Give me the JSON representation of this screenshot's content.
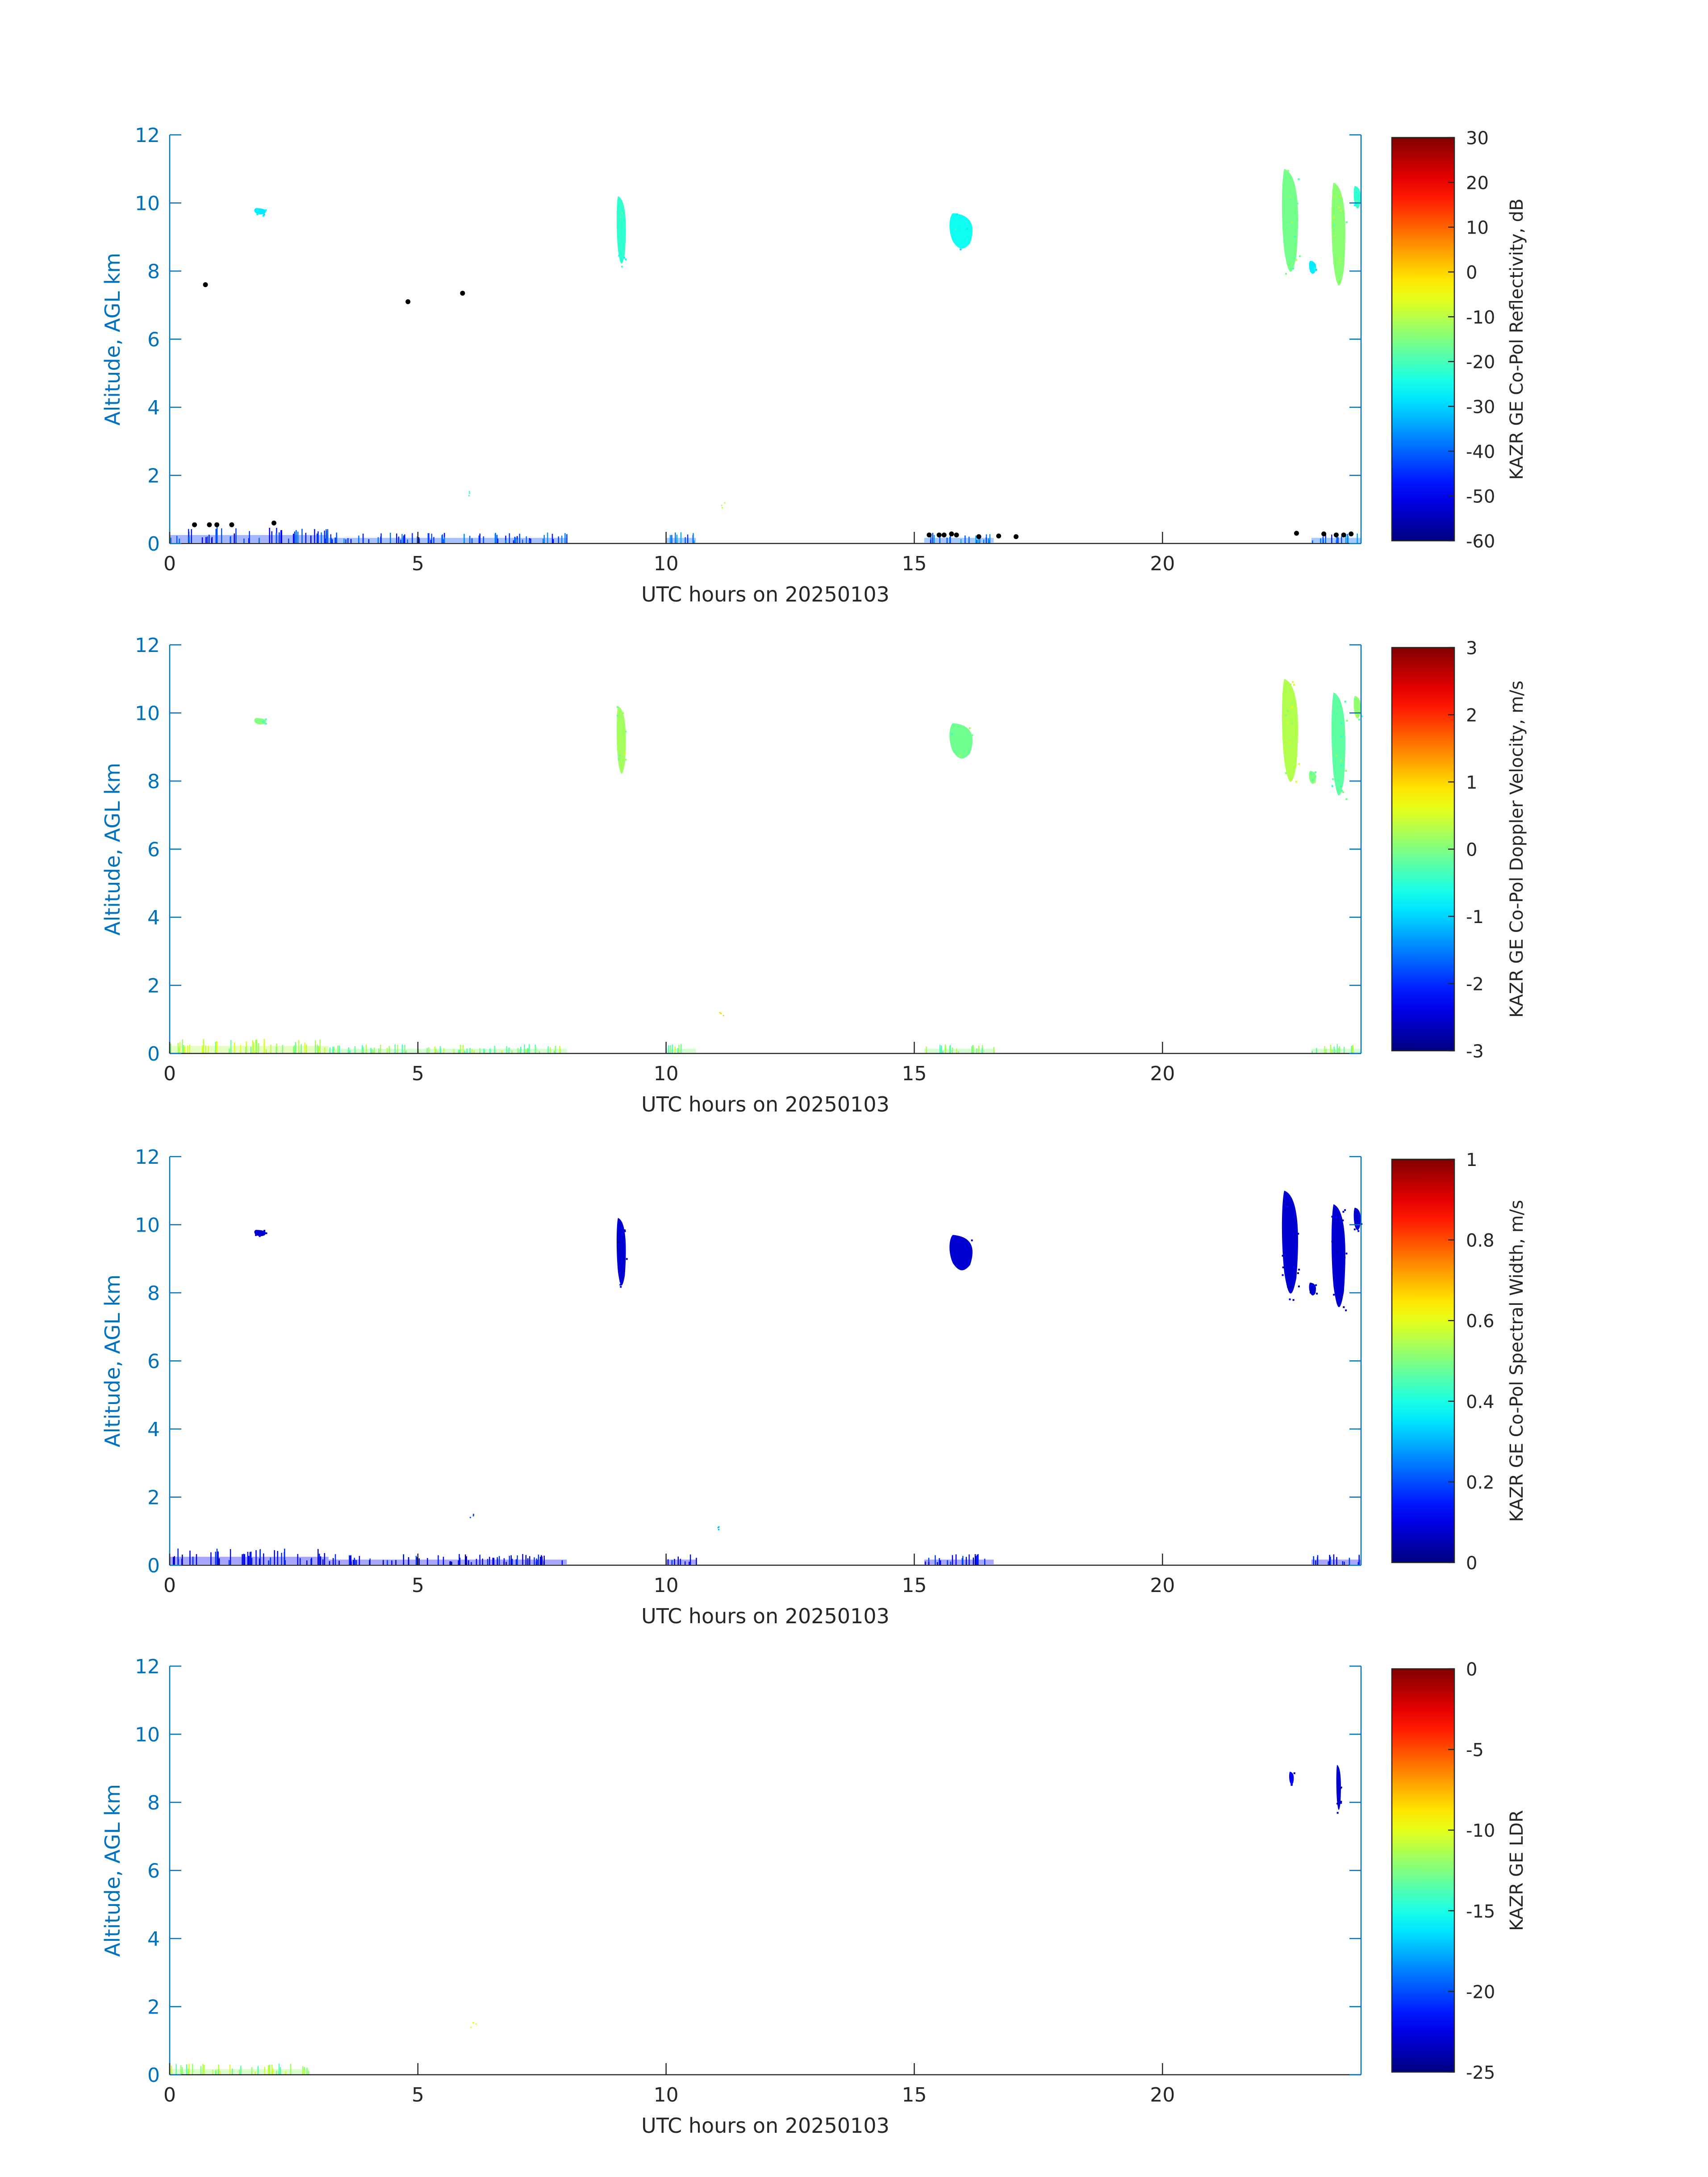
{
  "figure": {
    "accent_color": "#0072bd",
    "text_color": "#262626"
  },
  "chart_data": [
    {
      "type": "heatmap",
      "xlabel": "UTC hours on 20250103",
      "ylabel": "Altitude, AGL km",
      "xlim": [
        0,
        24
      ],
      "ylim": [
        0,
        12
      ],
      "xticks": [
        0,
        5,
        10,
        15,
        20
      ],
      "yticks": [
        0,
        2,
        4,
        6,
        8,
        10,
        12
      ],
      "colorbar": {
        "label": "KAZR GE Co-Pol Reflectivity, dB",
        "lim": [
          -60,
          30
        ],
        "ticks": [
          -60,
          -50,
          -40,
          -30,
          -20,
          -10,
          0,
          10,
          20,
          30
        ],
        "colormap": "jet"
      },
      "features": [
        {
          "kind": "cloud",
          "t_start": 1.7,
          "t_end": 1.95,
          "alt_bottom": 9.65,
          "alt_top": 9.85,
          "value": -28
        },
        {
          "kind": "cloud",
          "t_start": 9.0,
          "t_end": 9.2,
          "alt_bottom": 8.1,
          "alt_top": 10.2,
          "value": -22
        },
        {
          "kind": "cloud",
          "t_start": 15.7,
          "t_end": 16.2,
          "alt_bottom": 8.6,
          "alt_top": 9.7,
          "value": -25
        },
        {
          "kind": "cloud",
          "t_start": 22.4,
          "t_end": 22.75,
          "alt_bottom": 7.8,
          "alt_top": 11.0,
          "value": -16
        },
        {
          "kind": "cloud",
          "t_start": 22.95,
          "t_end": 23.1,
          "alt_bottom": 7.9,
          "alt_top": 8.3,
          "value": -28
        },
        {
          "kind": "cloud",
          "t_start": 23.4,
          "t_end": 23.7,
          "alt_bottom": 7.4,
          "alt_top": 10.6,
          "value": -14
        },
        {
          "kind": "cloud",
          "t_start": 23.85,
          "t_end": 24.0,
          "alt_bottom": 9.8,
          "alt_top": 10.5,
          "value": -22
        },
        {
          "kind": "clutter",
          "t_start": 0.0,
          "t_end": 3.2,
          "alt_top": 0.45,
          "value": -45
        },
        {
          "kind": "clutter",
          "t_start": 3.2,
          "t_end": 8.0,
          "alt_top": 0.3,
          "value": -42
        },
        {
          "kind": "clutter",
          "t_start": 10.0,
          "t_end": 10.6,
          "alt_top": 0.3,
          "value": -40
        },
        {
          "kind": "clutter",
          "t_start": 15.2,
          "t_end": 16.6,
          "alt_top": 0.3,
          "value": -40
        },
        {
          "kind": "clutter",
          "t_start": 23.0,
          "t_end": 24.0,
          "alt_top": 0.3,
          "value": -40
        },
        {
          "kind": "specks",
          "t": 11.1,
          "alt": 1.15,
          "value": -10
        },
        {
          "kind": "specks",
          "t": 6.1,
          "alt": 1.5,
          "value": -20
        }
      ],
      "dots": [
        {
          "t": 0.72,
          "alt": 7.6
        },
        {
          "t": 4.8,
          "alt": 7.1
        },
        {
          "t": 5.9,
          "alt": 7.35
        },
        {
          "t": 0.5,
          "alt": 0.55
        },
        {
          "t": 0.8,
          "alt": 0.55
        },
        {
          "t": 0.95,
          "alt": 0.55
        },
        {
          "t": 1.25,
          "alt": 0.55
        },
        {
          "t": 2.1,
          "alt": 0.6
        },
        {
          "t": 15.3,
          "alt": 0.25
        },
        {
          "t": 15.5,
          "alt": 0.25
        },
        {
          "t": 15.6,
          "alt": 0.25
        },
        {
          "t": 15.75,
          "alt": 0.28
        },
        {
          "t": 15.85,
          "alt": 0.25
        },
        {
          "t": 16.3,
          "alt": 0.2
        },
        {
          "t": 16.7,
          "alt": 0.22
        },
        {
          "t": 17.05,
          "alt": 0.2
        },
        {
          "t": 22.7,
          "alt": 0.3
        },
        {
          "t": 23.25,
          "alt": 0.28
        },
        {
          "t": 23.5,
          "alt": 0.25
        },
        {
          "t": 23.65,
          "alt": 0.25
        },
        {
          "t": 23.8,
          "alt": 0.28
        }
      ]
    },
    {
      "type": "heatmap",
      "xlabel": "UTC hours on 20250103",
      "ylabel": "Altitude, AGL km",
      "xlim": [
        0,
        24
      ],
      "ylim": [
        0,
        12
      ],
      "xticks": [
        0,
        5,
        10,
        15,
        20
      ],
      "yticks": [
        0,
        2,
        4,
        6,
        8,
        10,
        12
      ],
      "colorbar": {
        "label": "KAZR GE Co-Pol Doppler Velocity, m/s",
        "lim": [
          -3,
          3
        ],
        "ticks": [
          -3,
          -2,
          -1,
          0,
          1,
          2,
          3
        ],
        "colormap": "jet"
      },
      "features": [
        {
          "kind": "cloud",
          "t_start": 1.7,
          "t_end": 1.95,
          "alt_bottom": 9.65,
          "alt_top": 9.85,
          "value": 0.0
        },
        {
          "kind": "cloud",
          "t_start": 9.0,
          "t_end": 9.2,
          "alt_bottom": 8.1,
          "alt_top": 10.2,
          "value": 0.2
        },
        {
          "kind": "cloud",
          "t_start": 15.7,
          "t_end": 16.2,
          "alt_bottom": 8.6,
          "alt_top": 9.7,
          "value": -0.1
        },
        {
          "kind": "cloud",
          "t_start": 22.4,
          "t_end": 22.75,
          "alt_bottom": 7.8,
          "alt_top": 11.0,
          "value": 0.3
        },
        {
          "kind": "cloud",
          "t_start": 22.95,
          "t_end": 23.1,
          "alt_bottom": 7.9,
          "alt_top": 8.3,
          "value": 0.0
        },
        {
          "kind": "cloud",
          "t_start": 23.4,
          "t_end": 23.7,
          "alt_bottom": 7.4,
          "alt_top": 10.6,
          "value": -0.2
        },
        {
          "kind": "cloud",
          "t_start": 23.85,
          "t_end": 24.0,
          "alt_bottom": 9.8,
          "alt_top": 10.5,
          "value": 0.1
        },
        {
          "kind": "clutter",
          "t_start": 0.0,
          "t_end": 3.2,
          "alt_top": 0.4,
          "value": 0.3
        },
        {
          "kind": "clutter",
          "t_start": 3.2,
          "t_end": 8.0,
          "alt_top": 0.25,
          "value": 0.0
        },
        {
          "kind": "clutter",
          "t_start": 10.0,
          "t_end": 10.6,
          "alt_top": 0.25,
          "value": 0.0
        },
        {
          "kind": "clutter",
          "t_start": 15.2,
          "t_end": 16.6,
          "alt_top": 0.25,
          "value": 0.0
        },
        {
          "kind": "clutter",
          "t_start": 23.0,
          "t_end": 24.0,
          "alt_top": 0.25,
          "value": 0.0
        },
        {
          "kind": "specks",
          "t": 11.1,
          "alt": 1.15,
          "value": 1.0
        }
      ],
      "dots": []
    },
    {
      "type": "heatmap",
      "xlabel": "UTC hours on 20250103",
      "ylabel": "Altitude, AGL km",
      "xlim": [
        0,
        24
      ],
      "ylim": [
        0,
        12
      ],
      "xticks": [
        0,
        5,
        10,
        15,
        20
      ],
      "yticks": [
        0,
        2,
        4,
        6,
        8,
        10,
        12
      ],
      "colorbar": {
        "label": "KAZR GE Co-Pol Spectral Width, m/s",
        "lim": [
          0,
          1
        ],
        "ticks": [
          0,
          0.2,
          0.4,
          0.6,
          0.8,
          1
        ],
        "colormap": "jet"
      },
      "features": [
        {
          "kind": "cloud",
          "t_start": 1.7,
          "t_end": 1.95,
          "alt_bottom": 9.65,
          "alt_top": 9.85,
          "value": 0.08
        },
        {
          "kind": "cloud",
          "t_start": 9.0,
          "t_end": 9.2,
          "alt_bottom": 8.1,
          "alt_top": 10.2,
          "value": 0.08
        },
        {
          "kind": "cloud",
          "t_start": 15.7,
          "t_end": 16.2,
          "alt_bottom": 8.6,
          "alt_top": 9.7,
          "value": 0.08
        },
        {
          "kind": "cloud",
          "t_start": 22.4,
          "t_end": 22.75,
          "alt_bottom": 7.8,
          "alt_top": 11.0,
          "value": 0.08
        },
        {
          "kind": "cloud",
          "t_start": 22.95,
          "t_end": 23.1,
          "alt_bottom": 7.9,
          "alt_top": 8.3,
          "value": 0.08
        },
        {
          "kind": "cloud",
          "t_start": 23.4,
          "t_end": 23.7,
          "alt_bottom": 7.4,
          "alt_top": 10.6,
          "value": 0.08
        },
        {
          "kind": "cloud",
          "t_start": 23.85,
          "t_end": 24.0,
          "alt_bottom": 9.8,
          "alt_top": 10.5,
          "value": 0.08
        },
        {
          "kind": "clutter",
          "t_start": 0.0,
          "t_end": 3.2,
          "alt_top": 0.45,
          "value": 0.12
        },
        {
          "kind": "clutter",
          "t_start": 3.2,
          "t_end": 8.0,
          "alt_top": 0.3,
          "value": 0.12
        },
        {
          "kind": "clutter",
          "t_start": 10.0,
          "t_end": 10.6,
          "alt_top": 0.3,
          "value": 0.12
        },
        {
          "kind": "clutter",
          "t_start": 15.2,
          "t_end": 16.6,
          "alt_top": 0.3,
          "value": 0.12
        },
        {
          "kind": "clutter",
          "t_start": 23.0,
          "t_end": 24.0,
          "alt_top": 0.3,
          "value": 0.12
        },
        {
          "kind": "specks",
          "t": 11.1,
          "alt": 1.15,
          "value": 0.3
        },
        {
          "kind": "specks",
          "t": 6.1,
          "alt": 1.5,
          "value": 0.2
        }
      ],
      "dots": []
    },
    {
      "type": "heatmap",
      "xlabel": "UTC hours on 20250103",
      "ylabel": "Altitude, AGL km",
      "xlim": [
        0,
        24
      ],
      "ylim": [
        0,
        12
      ],
      "xticks": [
        0,
        5,
        10,
        15,
        20
      ],
      "yticks": [
        0,
        2,
        4,
        6,
        8,
        10,
        12
      ],
      "colorbar": {
        "label": "KAZR GE LDR",
        "lim": [
          -25,
          0
        ],
        "ticks": [
          -25,
          -20,
          -15,
          -10,
          -5,
          0
        ],
        "colormap": "jet"
      },
      "features": [
        {
          "kind": "cloud",
          "t_start": 22.55,
          "t_end": 22.65,
          "alt_bottom": 8.5,
          "alt_top": 8.9,
          "value": -22
        },
        {
          "kind": "cloud",
          "t_start": 23.5,
          "t_end": 23.6,
          "alt_bottom": 7.7,
          "alt_top": 9.1,
          "value": -23
        },
        {
          "kind": "clutter",
          "t_start": 0.0,
          "t_end": 2.8,
          "alt_top": 0.3,
          "value": -12
        },
        {
          "kind": "specks",
          "t": 6.1,
          "alt": 1.5,
          "value": -10
        }
      ],
      "dots": []
    }
  ]
}
